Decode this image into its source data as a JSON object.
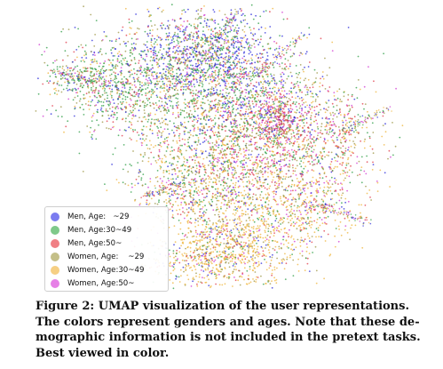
{
  "figure": {
    "legend": [
      {
        "label": "Men, Age:   ~29",
        "color": "#7b7cf0"
      },
      {
        "label": "Men, Age:30~49",
        "color": "#7fc98a"
      },
      {
        "label": "Men, Age:50~",
        "color": "#f07f84"
      },
      {
        "label": "Women, Age:    ~29",
        "color": "#c4bf88"
      },
      {
        "label": "Women, Age:30~49",
        "color": "#f6cf83"
      },
      {
        "label": "Women, Age:50~",
        "color": "#e680e6"
      }
    ]
  },
  "caption": {
    "text": "Figure 2: UMAP visualization of the user representations.\nThe colors represent genders and ages. Note that these de-\nmographic information is not included in the pretext tasks.\nBest viewed in color."
  },
  "chart_data": {
    "type": "scatter",
    "title": "",
    "xlabel": "",
    "ylabel": "",
    "axes_visible": false,
    "grid": false,
    "legend_placement": "bottom-left",
    "series": [
      {
        "name": "Men, Age:   ~29",
        "color": "#2b2bd9"
      },
      {
        "name": "Men, Age:30~49",
        "color": "#2e9e46"
      },
      {
        "name": "Men, Age:50~",
        "color": "#e03a48"
      },
      {
        "name": "Women, Age:    ~29",
        "color": "#9c9544"
      },
      {
        "name": "Women, Age:30~49",
        "color": "#efb43a"
      },
      {
        "name": "Women, Age:50~",
        "color": "#d23ad2"
      }
    ]
  }
}
